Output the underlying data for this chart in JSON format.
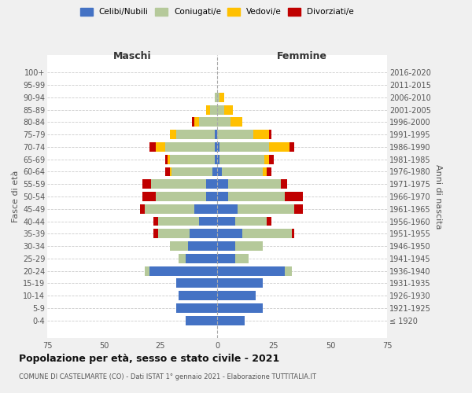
{
  "age_groups": [
    "100+",
    "95-99",
    "90-94",
    "85-89",
    "80-84",
    "75-79",
    "70-74",
    "65-69",
    "60-64",
    "55-59",
    "50-54",
    "45-49",
    "40-44",
    "35-39",
    "30-34",
    "25-29",
    "20-24",
    "15-19",
    "10-14",
    "5-9",
    "0-4"
  ],
  "birth_years": [
    "≤ 1920",
    "1921-1925",
    "1926-1930",
    "1931-1935",
    "1936-1940",
    "1941-1945",
    "1946-1950",
    "1951-1955",
    "1956-1960",
    "1961-1965",
    "1966-1970",
    "1971-1975",
    "1976-1980",
    "1981-1985",
    "1986-1990",
    "1991-1995",
    "1996-2000",
    "2001-2005",
    "2006-2010",
    "2011-2015",
    "2016-2020"
  ],
  "male": {
    "celibi": [
      0,
      0,
      0,
      0,
      0,
      1,
      1,
      1,
      2,
      5,
      5,
      10,
      8,
      12,
      13,
      14,
      30,
      18,
      17,
      18,
      14
    ],
    "coniugati": [
      0,
      0,
      1,
      3,
      8,
      17,
      22,
      20,
      18,
      24,
      22,
      22,
      18,
      14,
      8,
      3,
      2,
      0,
      0,
      0,
      0
    ],
    "vedovi": [
      0,
      0,
      0,
      2,
      2,
      3,
      4,
      1,
      1,
      0,
      0,
      0,
      0,
      0,
      0,
      0,
      0,
      0,
      0,
      0,
      0
    ],
    "divorziati": [
      0,
      0,
      0,
      0,
      1,
      0,
      3,
      1,
      2,
      4,
      6,
      2,
      2,
      2,
      0,
      0,
      0,
      0,
      0,
      0,
      0
    ]
  },
  "female": {
    "nubili": [
      0,
      0,
      0,
      0,
      0,
      0,
      1,
      1,
      2,
      5,
      5,
      9,
      8,
      11,
      8,
      8,
      30,
      20,
      17,
      20,
      12
    ],
    "coniugate": [
      0,
      0,
      1,
      3,
      6,
      16,
      22,
      20,
      18,
      23,
      25,
      25,
      14,
      22,
      12,
      6,
      3,
      0,
      0,
      0,
      0
    ],
    "vedove": [
      0,
      0,
      2,
      4,
      5,
      7,
      9,
      2,
      2,
      0,
      0,
      0,
      0,
      0,
      0,
      0,
      0,
      0,
      0,
      0,
      0
    ],
    "divorziate": [
      0,
      0,
      0,
      0,
      0,
      1,
      2,
      2,
      2,
      3,
      8,
      4,
      2,
      1,
      0,
      0,
      0,
      0,
      0,
      0,
      0
    ]
  },
  "colors": {
    "celibi": "#4472c4",
    "coniugati": "#b5c99a",
    "vedovi": "#ffc000",
    "divorziati": "#c00000"
  },
  "title": "Popolazione per età, sesso e stato civile - 2021",
  "subtitle": "COMUNE DI CASTELMARTE (CO) - Dati ISTAT 1° gennaio 2021 - Elaborazione TUTTITALIA.IT",
  "xlabel_left": "Maschi",
  "xlabel_right": "Femmine",
  "ylabel_left": "Fasce di età",
  "ylabel_right": "Anni di nascita",
  "xlim": 75,
  "bg_color": "#f0f0f0",
  "plot_bg": "#ffffff",
  "legend_labels": [
    "Celibi/Nubili",
    "Coniugati/e",
    "Vedovi/e",
    "Divorziati/e"
  ]
}
